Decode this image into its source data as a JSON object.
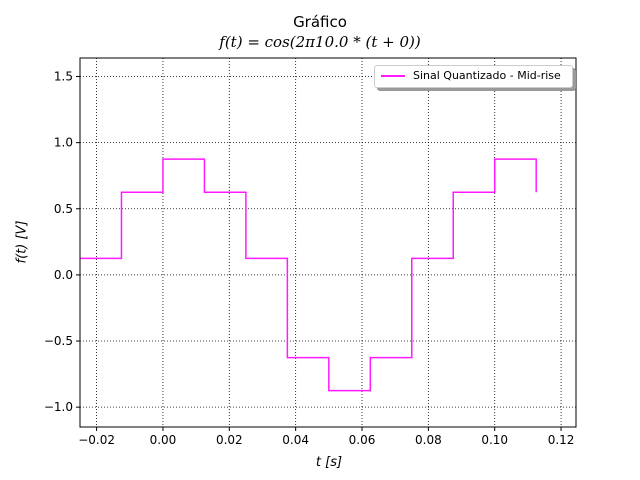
{
  "chart_data": {
    "type": "line",
    "title": "Gráfico",
    "subtitle": "f(t) = cos(2π10.0 * (t + 0))",
    "xlabel": "t [s]",
    "ylabel": "f(t) [V]",
    "xlim": [
      -0.025,
      0.1245
    ],
    "ylim": [
      -1.15,
      1.64
    ],
    "xticks": [
      -0.02,
      0.0,
      0.02,
      0.04,
      0.06,
      0.08,
      0.1,
      0.12
    ],
    "xtick_labels": [
      "−0.02",
      "0.00",
      "0.02",
      "0.04",
      "0.06",
      "0.08",
      "0.10",
      "0.12"
    ],
    "yticks": [
      -1.0,
      -0.5,
      0.0,
      0.5,
      1.0,
      1.5
    ],
    "ytick_labels": [
      "−1.0",
      "−0.5",
      "0.0",
      "0.5",
      "1.0",
      "1.5"
    ],
    "grid": true,
    "legend_position": "top-right",
    "series": [
      {
        "name": "Sinal Quantizado - Mid-rise",
        "color": "#ff1aff",
        "step": true,
        "x": [
          -0.025,
          -0.0125,
          0.0,
          0.0125,
          0.025,
          0.0375,
          0.05,
          0.0625,
          0.075,
          0.0875,
          0.1,
          0.1125
        ],
        "y": [
          0.125,
          0.625,
          0.875,
          0.625,
          0.125,
          -0.625,
          -0.875,
          -0.625,
          0.125,
          0.625,
          0.875,
          0.625
        ]
      }
    ]
  }
}
